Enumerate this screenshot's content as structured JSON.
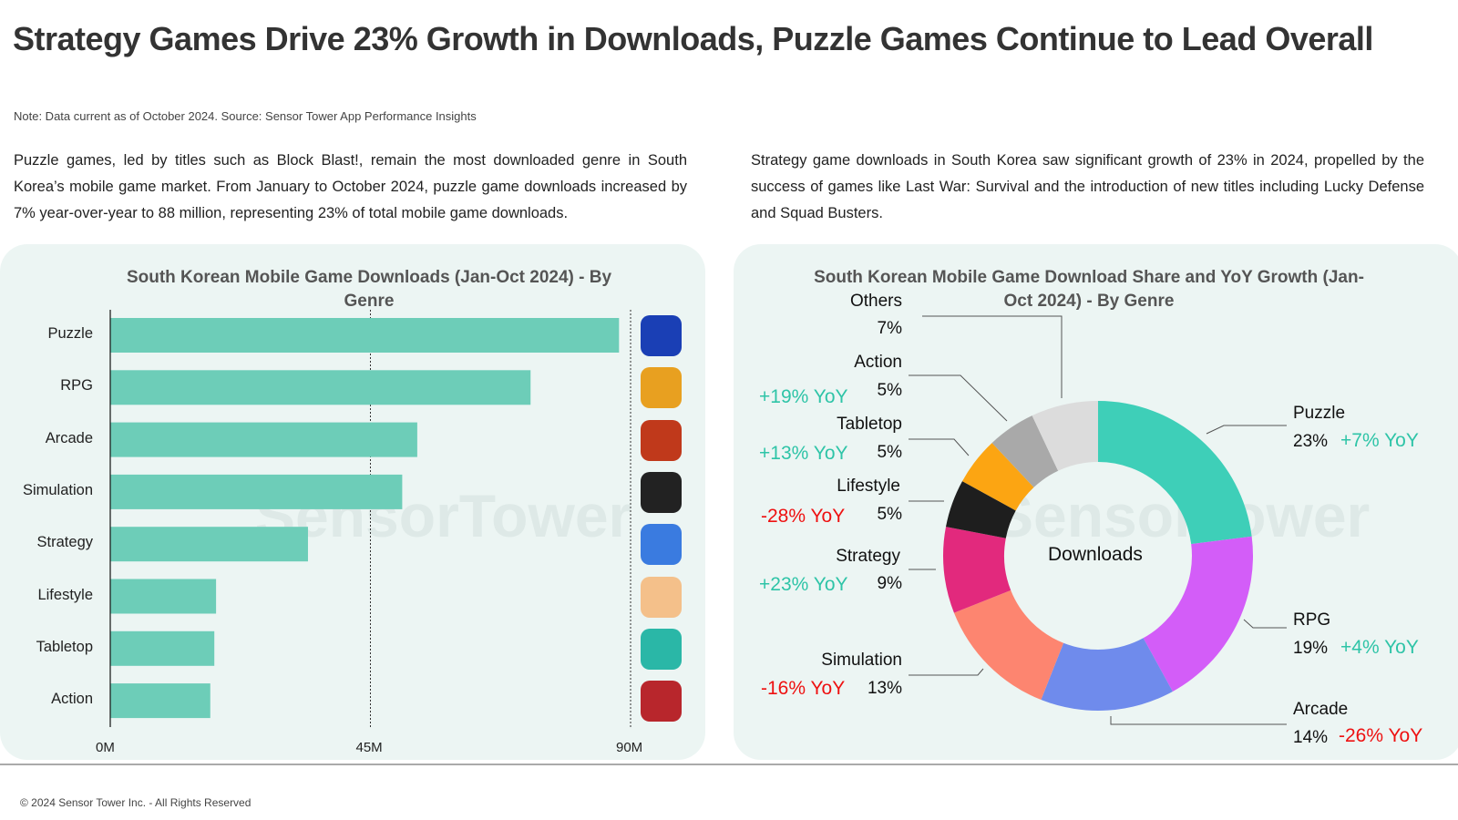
{
  "title": "Strategy Games Drive 23% Growth in Downloads, Puzzle Games Continue to Lead Overall",
  "note": "Note: Data current as of October 2024. Source: Sensor Tower App Performance Insights",
  "paragraph_left": "Puzzle games, led by titles such as Block Blast!, remain the most downloaded genre in South Korea’s mobile game market. From January to October 2024, puzzle game downloads increased by 7% year-over-year to 88 million, representing 23% of total mobile game downloads.",
  "paragraph_right": "Strategy game downloads in South Korea saw significant growth of 23% in 2024, propelled by the success of games like Last War: Survival and the introduction of new titles including Lucky Defense and Squad Busters.",
  "watermark": "SensorTower",
  "footer": "© 2024 Sensor Tower Inc. - All Rights Reserved",
  "chart_data": [
    {
      "type": "bar",
      "orientation": "horizontal",
      "title": "South Korean Mobile Game Downloads (Jan-Oct 2024) - By Genre",
      "categories": [
        "Puzzle",
        "RPG",
        "Arcade",
        "Simulation",
        "Strategy",
        "Lifestyle",
        "Tabletop",
        "Action"
      ],
      "values": [
        88,
        72.7,
        53.1,
        50.5,
        34.2,
        18.3,
        18.0,
        17.3
      ],
      "unit": "M",
      "xlim": [
        0,
        90
      ],
      "ticks": [
        "0M",
        "45M",
        "90M"
      ],
      "tick_values": [
        0,
        45,
        90
      ],
      "grid": "dotted vertical at 45M and 90M",
      "color": "#6dcdb8",
      "icons": [
        "block-blast-icon",
        "rpg-game-icon",
        "cookie-run-icon",
        "simulation-game-icon",
        "strategy-game-icon",
        "lifestyle-game-icon",
        "tabletop-game-icon",
        "action-game-icon"
      ],
      "icon_colors": [
        "#1a3fb5",
        "#e8a020",
        "#c0391b",
        "#222222",
        "#3a7be0",
        "#f4c08a",
        "#2ab7a7",
        "#b8262c"
      ]
    },
    {
      "type": "pie",
      "donut": true,
      "title": "South Korean Mobile Game Download Share and YoY Growth (Jan-Oct 2024) - By Genre",
      "center_label": "Downloads",
      "slices": [
        {
          "name": "Puzzle",
          "share": "23%",
          "value": 23,
          "yoy": "+7% YoY",
          "color": "#3ecfb8"
        },
        {
          "name": "RPG",
          "share": "19%",
          "value": 19,
          "yoy": "+4% YoY",
          "color": "#d35df8"
        },
        {
          "name": "Arcade",
          "share": "14%",
          "value": 14,
          "yoy": "-26% YoY",
          "color": "#6f8bec"
        },
        {
          "name": "Simulation",
          "share": "13%",
          "value": 13,
          "yoy": "-16% YoY",
          "color": "#fd8570"
        },
        {
          "name": "Strategy",
          "share": "9%",
          "value": 9,
          "yoy": "+23% YoY",
          "color": "#e2297d"
        },
        {
          "name": "Lifestyle",
          "share": "5%",
          "value": 5,
          "yoy": "-28% YoY",
          "color": "#1e1e1e"
        },
        {
          "name": "Tabletop",
          "share": "5%",
          "value": 5,
          "yoy": "+13% YoY",
          "color": "#fca512"
        },
        {
          "name": "Action",
          "share": "5%",
          "value": 5,
          "yoy": "+19% YoY",
          "color": "#a9a9a9"
        },
        {
          "name": "Others",
          "share": "7%",
          "value": 7,
          "yoy": "",
          "color": "#dcdcdc"
        }
      ],
      "positive_color": "#2ec4a7",
      "negative_color": "#ee1111"
    }
  ]
}
